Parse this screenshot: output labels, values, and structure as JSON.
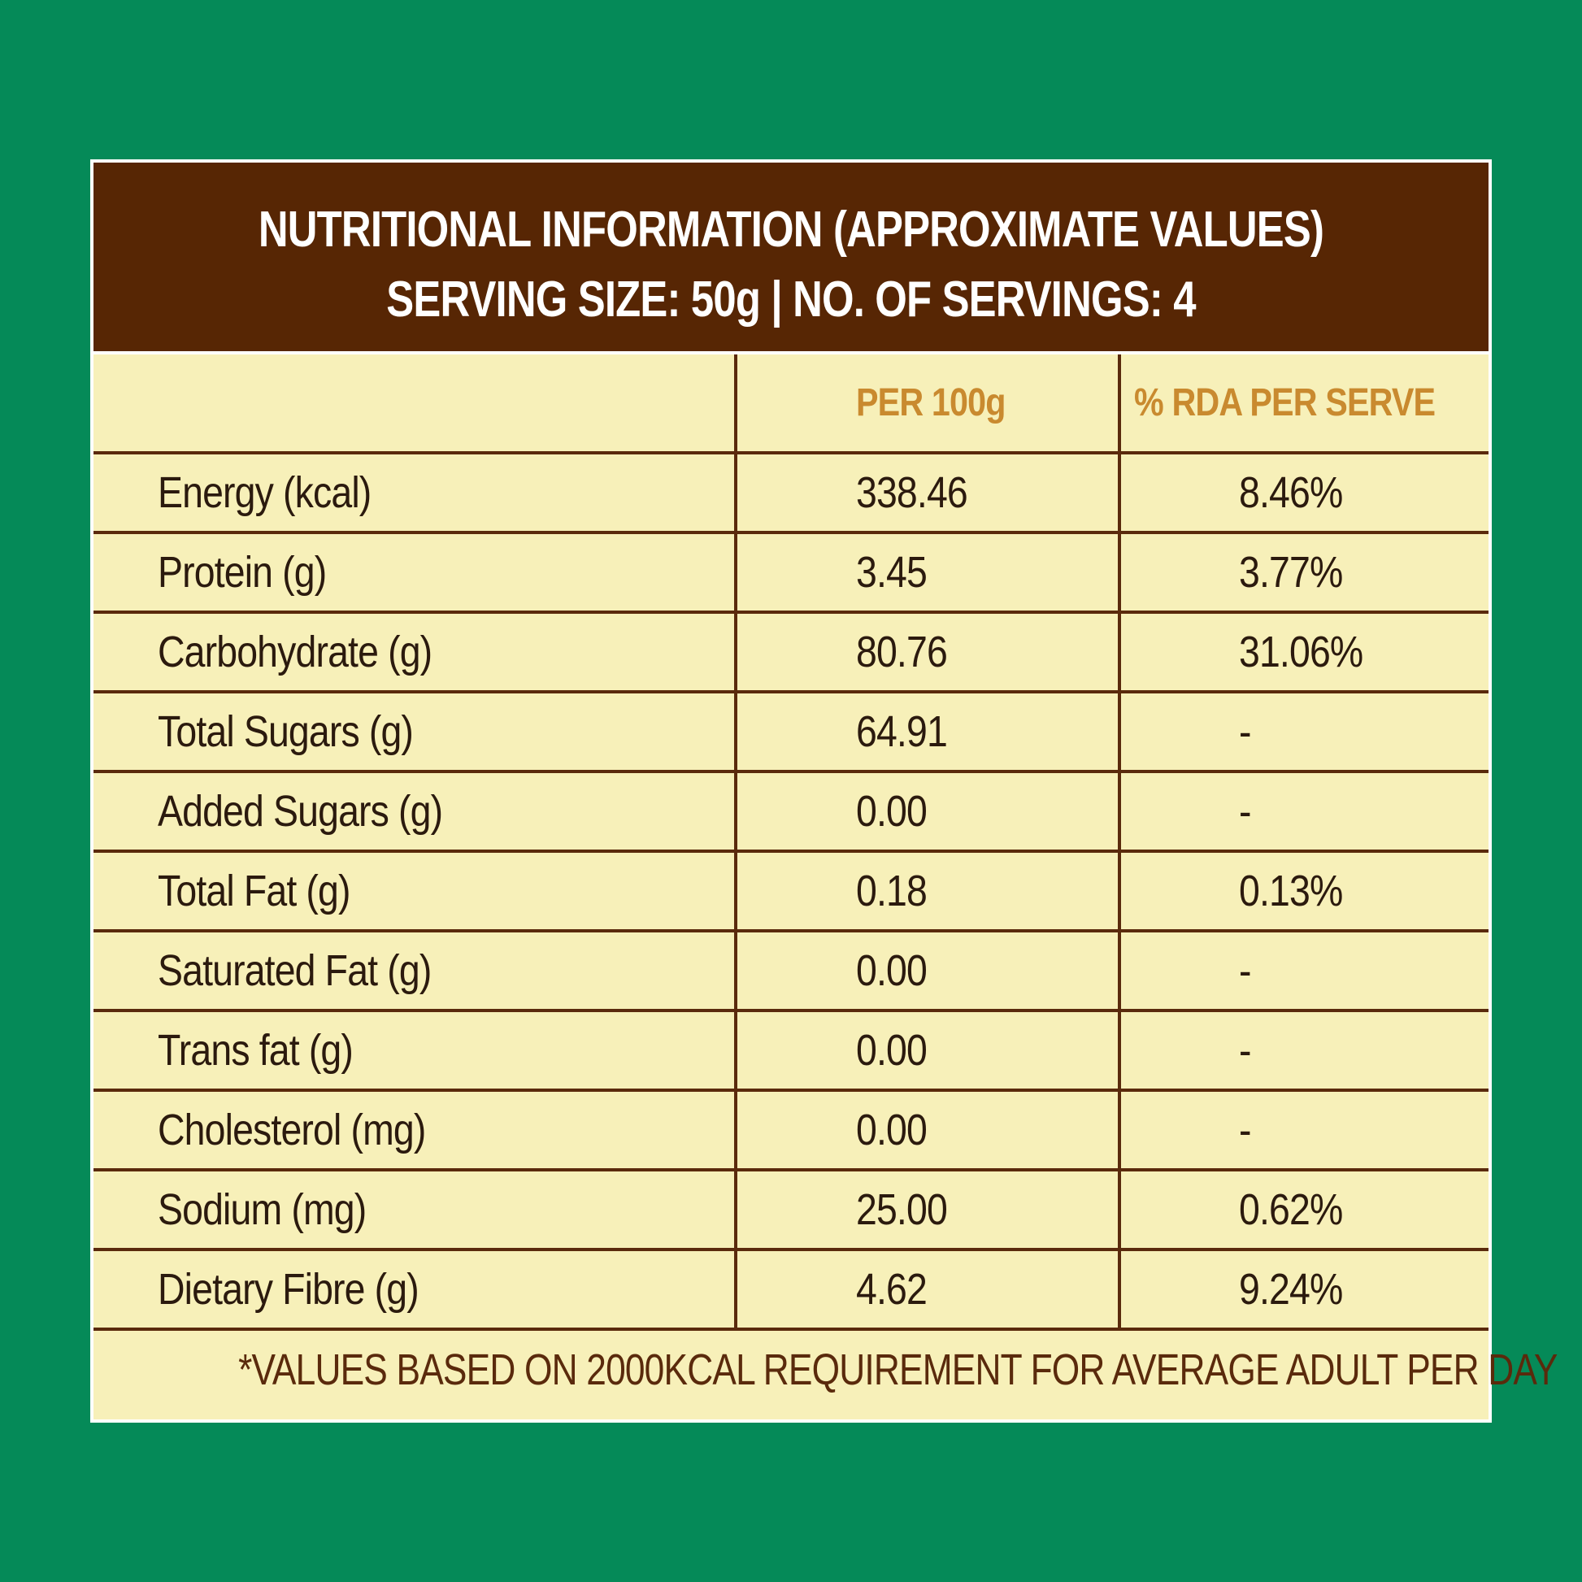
{
  "header": {
    "title": "NUTRITIONAL INFORMATION (APPROXIMATE VALUES)",
    "serving_line": "SERVING SIZE: 50g  |  NO. OF SERVINGS: 4"
  },
  "table": {
    "columns": [
      "",
      "PER 100g",
      "% RDA PER SERVE"
    ],
    "rows": [
      {
        "nutrient": "Energy (kcal)",
        "per_100g": "338.46",
        "rda": "8.46%"
      },
      {
        "nutrient": "Protein (g)",
        "per_100g": "3.45",
        "rda": "3.77%"
      },
      {
        "nutrient": "Carbohydrate (g)",
        "per_100g": "80.76",
        "rda": "31.06%"
      },
      {
        "nutrient": "Total Sugars (g)",
        "per_100g": "64.91",
        "rda": "-"
      },
      {
        "nutrient": "Added Sugars (g)",
        "per_100g": "0.00",
        "rda": "-"
      },
      {
        "nutrient": "Total Fat (g)",
        "per_100g": "0.18",
        "rda": "0.13%"
      },
      {
        "nutrient": "Saturated Fat (g)",
        "per_100g": "0.00",
        "rda": "-"
      },
      {
        "nutrient": "Trans fat (g)",
        "per_100g": "0.00",
        "rda": "-"
      },
      {
        "nutrient": "Cholesterol (mg)",
        "per_100g": "0.00",
        "rda": "-"
      },
      {
        "nutrient": "Sodium (mg)",
        "per_100g": "25.00",
        "rda": "0.62%"
      },
      {
        "nutrient": "Dietary Fibre (g)",
        "per_100g": "4.62",
        "rda": "9.24%"
      }
    ]
  },
  "footnote": "*VALUES BASED ON 2000KCAL REQUIREMENT FOR AVERAGE ADULT PER DAY",
  "colors": {
    "background": "#058a58",
    "header_bg": "#572604",
    "table_bg": "#f7f0b9",
    "column_header": "#c98a2f",
    "rule": "#5a2a0c"
  }
}
